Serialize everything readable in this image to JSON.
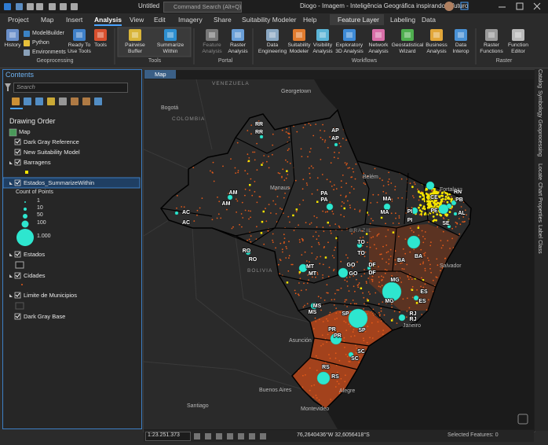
{
  "title_bar": {
    "document": "Untitled",
    "command_search": "Command Search (Alt+Q)",
    "window_title": "Diogo - Imagem - Inteligência Geográfica inspirando o futuro"
  },
  "menu": {
    "tabs": [
      {
        "label": "Project"
      },
      {
        "label": "Map"
      },
      {
        "label": "Insert"
      },
      {
        "label": "Analysis",
        "active": true
      },
      {
        "label": "View"
      },
      {
        "label": "Edit"
      },
      {
        "label": "Imagery"
      },
      {
        "label": "Share"
      },
      {
        "label": "Suitability Modeler"
      },
      {
        "label": "Help"
      }
    ],
    "context_group": "Feature Layer",
    "context_tabs": [
      "Labeling",
      "Data"
    ]
  },
  "ribbon": {
    "groups": [
      {
        "label": "Geoprocessing",
        "tools": [
          [
            "History"
          ],
          [
            "ModelBuilder"
          ],
          [
            "Python"
          ],
          [
            "Environments"
          ],
          [
            "Ready To",
            "Use Tools"
          ],
          [
            "Tools"
          ]
        ]
      },
      {
        "label": "Tools",
        "tools": [
          [
            "Pairwise",
            "Buffer"
          ],
          [
            "Summarize",
            "Within"
          ]
        ]
      },
      {
        "label": "Portal",
        "tools": [
          [
            "Feature",
            "Analysis"
          ],
          [
            "Raster",
            "Analysis"
          ]
        ]
      },
      {
        "label": "Workflows",
        "tools": [
          [
            "Data",
            "Engineering"
          ],
          [
            "Suitability",
            "Modeler"
          ],
          [
            "Visibility",
            "Analysis"
          ],
          [
            "Exploratory",
            "3D Analysis"
          ],
          [
            "Network",
            "Analysis"
          ],
          [
            "Geostatistical",
            "Wizard"
          ],
          [
            "Business",
            "Analysis"
          ],
          [
            "Data",
            "Interop"
          ]
        ]
      },
      {
        "label": "Raster",
        "tools": [
          [
            "Raster",
            "Functions"
          ],
          [
            "Function",
            "Editor"
          ]
        ]
      }
    ]
  },
  "contents": {
    "title": "Contents",
    "search": "Search",
    "drawing_order": "Drawing Order",
    "layers": [
      "Map",
      "Dark Gray Reference",
      "New Suitability Model",
      "Barragens",
      "Estados_SummarizeWithin",
      "Estados",
      "Cidades",
      "Limite de Municipios",
      "Dark Gray Base"
    ],
    "legend_title": "Count of Points",
    "legend_labels": [
      "1",
      "10",
      "50",
      "100",
      "1.000"
    ]
  },
  "map": {
    "tab": "Map",
    "places": [
      "VENEZUELA",
      "Georgetown",
      "Bogotá",
      "COLOMBIA",
      "Manaus",
      "Belém",
      "Fortaleza",
      "BRAZIL",
      "Salvador",
      "BOLIVIA",
      "Asunción",
      "Janeiro",
      "Santiago",
      "Buenos Aires",
      "Montevideo",
      "Alegre"
    ],
    "states": [
      "RR",
      "AP",
      "AM",
      "PA",
      "MA",
      "PI",
      "CE",
      "RN",
      "PB",
      "PE",
      "AL",
      "SE",
      "BA",
      "TO",
      "AC",
      "RO",
      "MT",
      "GO",
      "DF",
      "MG",
      "ES",
      "RJ",
      "SP",
      "MS",
      "PR",
      "SC",
      "RS"
    ]
  },
  "side_tabs": [
    "Catalog",
    "Symbology",
    "Geoprocessing",
    "Locate",
    "Chart Properties",
    "Label Class"
  ],
  "status": {
    "scale": "1:23.251.373",
    "coordinates": "76,2640436°W 32,6056418°S",
    "selected": "Selected Features: 0"
  }
}
